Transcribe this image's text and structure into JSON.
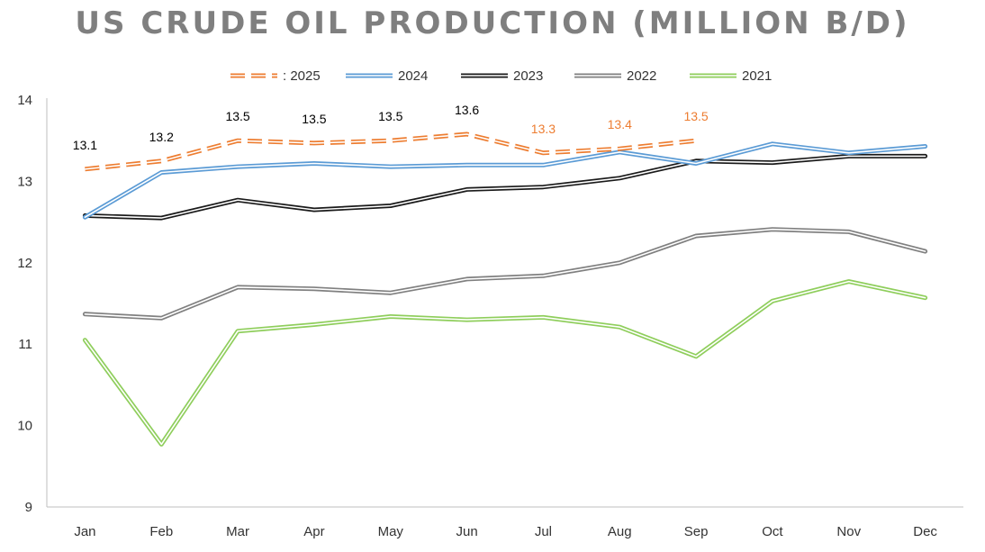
{
  "chart_data": {
    "type": "line",
    "title": "US CRUDE OIL PRODUCTION (MILLION B/D)",
    "categories": [
      "Jan",
      "Feb",
      "Mar",
      "Apr",
      "May",
      "Jun",
      "Jul",
      "Aug",
      "Sep",
      "Oct",
      "Nov",
      "Dec"
    ],
    "ylim": [
      9,
      14
    ],
    "yticks": [
      9,
      10,
      11,
      12,
      13,
      14
    ],
    "grid": false,
    "legend_position": "top",
    "series": [
      {
        "name": ": 2025",
        "color": "#ed7d31",
        "style": "dashed-double",
        "values": [
          13.15,
          13.25,
          13.5,
          13.47,
          13.5,
          13.58,
          13.35,
          13.4,
          13.5,
          null,
          null,
          null
        ],
        "labels": [
          "13.1",
          "13.2",
          "13.5",
          "13.5",
          "13.5",
          "13.6",
          "13.3",
          "13.4",
          "13.5",
          "",
          "",
          ""
        ],
        "label_colors": [
          "#000000",
          "#000000",
          "#000000",
          "#000000",
          "#000000",
          "#000000",
          "#ed7d31",
          "#ed7d31",
          "#ed7d31",
          "",
          "",
          ""
        ]
      },
      {
        "name": "2024",
        "color": "#5b9bd5",
        "style": "double",
        "values": [
          12.56,
          13.11,
          13.18,
          13.22,
          13.18,
          13.2,
          13.2,
          13.36,
          13.22,
          13.46,
          13.35,
          13.43
        ]
      },
      {
        "name": "2023",
        "color": "#1a1a1a",
        "style": "double",
        "values": [
          12.58,
          12.55,
          12.77,
          12.65,
          12.7,
          12.9,
          12.93,
          13.04,
          13.25,
          13.23,
          13.31,
          13.31
        ]
      },
      {
        "name": "2022",
        "color": "#808080",
        "style": "double",
        "values": [
          11.37,
          11.32,
          11.7,
          11.68,
          11.63,
          11.8,
          11.84,
          12.0,
          12.33,
          12.41,
          12.38,
          12.14
        ]
      },
      {
        "name": "2021",
        "color": "#8fce5c",
        "style": "double",
        "values": [
          11.05,
          9.77,
          11.16,
          11.24,
          11.34,
          11.3,
          11.33,
          11.21,
          10.85,
          11.53,
          11.77,
          11.57
        ]
      }
    ]
  }
}
